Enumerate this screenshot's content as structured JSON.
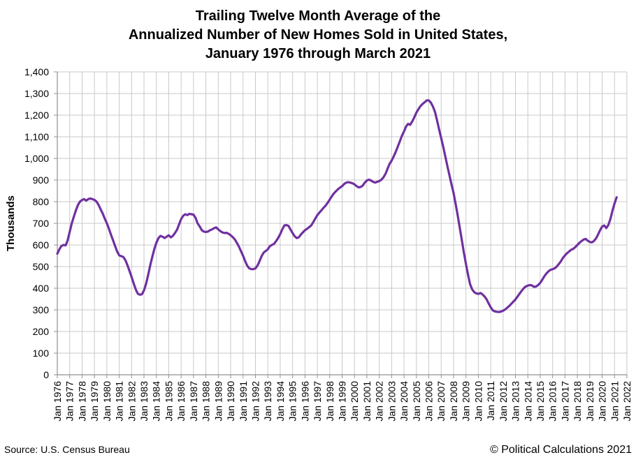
{
  "header": {
    "title_lines": [
      "Trailing Twelve Month Average of the",
      "Annualized Number of New Homes Sold in United States,",
      "January 1976 through March 2021"
    ]
  },
  "footer": {
    "source": "Source: U.S. Census Bureau",
    "copyright": "© Political Calculations 2021"
  },
  "colors": {
    "line": "#7030A0",
    "gridline": "#C9C9C9",
    "axis": "#909090",
    "text": "#000000",
    "background": "#FFFFFF"
  },
  "chart_data": {
    "type": "line",
    "title": "Trailing Twelve Month Average of the Annualized Number of New Homes Sold in United States, January 1976 through March 2021",
    "xlabel": "",
    "ylabel": "Thousands",
    "ylim": [
      0,
      1400
    ],
    "ytick_step": 100,
    "xlim": [
      1976,
      2022
    ],
    "grid": true,
    "legend_position": "none",
    "xtick_labels": [
      "Jan 1976",
      "Jan 1977",
      "Jan 1978",
      "Jan 1979",
      "Jan 1980",
      "Jan 1981",
      "Jan 1982",
      "Jan 1983",
      "Jan 1984",
      "Jan 1985",
      "Jan 1986",
      "Jan 1987",
      "Jan 1988",
      "Jan 1989",
      "Jan 1990",
      "Jan 1991",
      "Jan 1992",
      "Jan 1993",
      "Jan 1994",
      "Jan 1995",
      "Jan 1996",
      "Jan 1997",
      "Jan 1998",
      "Jan 1999",
      "Jan 2000",
      "Jan 2001",
      "Jan 2002",
      "Jan 2003",
      "Jan 2004",
      "Jan 2005",
      "Jan 2006",
      "Jan 2007",
      "Jan 2008",
      "Jan 2009",
      "Jan 2010",
      "Jan 2011",
      "Jan 2012",
      "Jan 2013",
      "Jan 2014",
      "Jan 2015",
      "Jan 2016",
      "Jan 2017",
      "Jan 2018",
      "Jan 2019",
      "Jan 2020",
      "Jan 2021",
      "Jan 2022"
    ],
    "series": [
      {
        "name": "Trailing twelve month average of annualized new homes sold (thousands)",
        "points": [
          [
            1976.0,
            560
          ],
          [
            1976.17,
            580
          ],
          [
            1976.33,
            595
          ],
          [
            1976.5,
            600
          ],
          [
            1976.67,
            598
          ],
          [
            1976.83,
            620
          ],
          [
            1977.0,
            660
          ],
          [
            1977.17,
            700
          ],
          [
            1977.33,
            730
          ],
          [
            1977.5,
            760
          ],
          [
            1977.67,
            785
          ],
          [
            1977.83,
            800
          ],
          [
            1978.0,
            808
          ],
          [
            1978.17,
            812
          ],
          [
            1978.33,
            805
          ],
          [
            1978.5,
            812
          ],
          [
            1978.67,
            815
          ],
          [
            1978.83,
            812
          ],
          [
            1979.0,
            808
          ],
          [
            1979.17,
            800
          ],
          [
            1979.33,
            785
          ],
          [
            1979.5,
            765
          ],
          [
            1979.67,
            745
          ],
          [
            1979.83,
            722
          ],
          [
            1980.0,
            700
          ],
          [
            1980.17,
            675
          ],
          [
            1980.33,
            648
          ],
          [
            1980.5,
            622
          ],
          [
            1980.67,
            595
          ],
          [
            1980.83,
            570
          ],
          [
            1981.0,
            552
          ],
          [
            1981.17,
            548
          ],
          [
            1981.33,
            545
          ],
          [
            1981.5,
            530
          ],
          [
            1981.67,
            505
          ],
          [
            1981.83,
            480
          ],
          [
            1982.0,
            452
          ],
          [
            1982.17,
            422
          ],
          [
            1982.33,
            395
          ],
          [
            1982.5,
            375
          ],
          [
            1982.67,
            370
          ],
          [
            1982.83,
            372
          ],
          [
            1983.0,
            390
          ],
          [
            1983.17,
            420
          ],
          [
            1983.33,
            460
          ],
          [
            1983.5,
            505
          ],
          [
            1983.67,
            545
          ],
          [
            1983.83,
            580
          ],
          [
            1984.0,
            610
          ],
          [
            1984.17,
            632
          ],
          [
            1984.33,
            642
          ],
          [
            1984.5,
            638
          ],
          [
            1984.67,
            632
          ],
          [
            1984.83,
            638
          ],
          [
            1985.0,
            645
          ],
          [
            1985.17,
            635
          ],
          [
            1985.33,
            642
          ],
          [
            1985.5,
            655
          ],
          [
            1985.67,
            670
          ],
          [
            1985.83,
            695
          ],
          [
            1986.0,
            720
          ],
          [
            1986.17,
            735
          ],
          [
            1986.33,
            742
          ],
          [
            1986.5,
            738
          ],
          [
            1986.67,
            744
          ],
          [
            1986.83,
            742
          ],
          [
            1987.0,
            740
          ],
          [
            1987.17,
            725
          ],
          [
            1987.33,
            700
          ],
          [
            1987.5,
            685
          ],
          [
            1987.67,
            668
          ],
          [
            1987.83,
            662
          ],
          [
            1988.0,
            660
          ],
          [
            1988.17,
            662
          ],
          [
            1988.33,
            668
          ],
          [
            1988.5,
            672
          ],
          [
            1988.67,
            678
          ],
          [
            1988.83,
            681
          ],
          [
            1989.0,
            672
          ],
          [
            1989.17,
            664
          ],
          [
            1989.33,
            658
          ],
          [
            1989.5,
            655
          ],
          [
            1989.67,
            656
          ],
          [
            1989.83,
            652
          ],
          [
            1990.0,
            645
          ],
          [
            1990.17,
            636
          ],
          [
            1990.33,
            626
          ],
          [
            1990.5,
            610
          ],
          [
            1990.67,
            592
          ],
          [
            1990.83,
            572
          ],
          [
            1991.0,
            550
          ],
          [
            1991.17,
            525
          ],
          [
            1991.33,
            505
          ],
          [
            1991.5,
            492
          ],
          [
            1991.67,
            488
          ],
          [
            1991.83,
            488
          ],
          [
            1992.0,
            492
          ],
          [
            1992.17,
            505
          ],
          [
            1992.33,
            525
          ],
          [
            1992.5,
            548
          ],
          [
            1992.67,
            565
          ],
          [
            1992.83,
            572
          ],
          [
            1993.0,
            580
          ],
          [
            1993.17,
            595
          ],
          [
            1993.33,
            600
          ],
          [
            1993.5,
            605
          ],
          [
            1993.67,
            618
          ],
          [
            1993.83,
            632
          ],
          [
            1994.0,
            650
          ],
          [
            1994.17,
            672
          ],
          [
            1994.33,
            690
          ],
          [
            1994.5,
            692
          ],
          [
            1994.67,
            688
          ],
          [
            1994.83,
            672
          ],
          [
            1995.0,
            655
          ],
          [
            1995.17,
            640
          ],
          [
            1995.33,
            632
          ],
          [
            1995.5,
            635
          ],
          [
            1995.67,
            648
          ],
          [
            1995.83,
            658
          ],
          [
            1996.0,
            668
          ],
          [
            1996.17,
            675
          ],
          [
            1996.33,
            682
          ],
          [
            1996.5,
            690
          ],
          [
            1996.67,
            705
          ],
          [
            1996.83,
            722
          ],
          [
            1997.0,
            738
          ],
          [
            1997.17,
            750
          ],
          [
            1997.33,
            760
          ],
          [
            1997.5,
            772
          ],
          [
            1997.67,
            782
          ],
          [
            1997.83,
            795
          ],
          [
            1998.0,
            810
          ],
          [
            1998.17,
            825
          ],
          [
            1998.33,
            838
          ],
          [
            1998.5,
            848
          ],
          [
            1998.67,
            858
          ],
          [
            1998.83,
            865
          ],
          [
            1999.0,
            872
          ],
          [
            1999.17,
            882
          ],
          [
            1999.33,
            888
          ],
          [
            1999.5,
            890
          ],
          [
            1999.67,
            888
          ],
          [
            1999.83,
            885
          ],
          [
            2000.0,
            880
          ],
          [
            2000.17,
            872
          ],
          [
            2000.33,
            866
          ],
          [
            2000.5,
            868
          ],
          [
            2000.67,
            875
          ],
          [
            2000.83,
            888
          ],
          [
            2001.0,
            898
          ],
          [
            2001.17,
            902
          ],
          [
            2001.33,
            898
          ],
          [
            2001.5,
            892
          ],
          [
            2001.67,
            888
          ],
          [
            2001.83,
            892
          ],
          [
            2002.0,
            895
          ],
          [
            2002.17,
            902
          ],
          [
            2002.33,
            912
          ],
          [
            2002.5,
            928
          ],
          [
            2002.67,
            952
          ],
          [
            2002.83,
            975
          ],
          [
            2003.0,
            990
          ],
          [
            2003.17,
            1010
          ],
          [
            2003.33,
            1030
          ],
          [
            2003.5,
            1055
          ],
          [
            2003.67,
            1080
          ],
          [
            2003.83,
            1105
          ],
          [
            2004.0,
            1125
          ],
          [
            2004.17,
            1148
          ],
          [
            2004.33,
            1160
          ],
          [
            2004.5,
            1155
          ],
          [
            2004.67,
            1172
          ],
          [
            2004.83,
            1190
          ],
          [
            2005.0,
            1212
          ],
          [
            2005.17,
            1228
          ],
          [
            2005.33,
            1242
          ],
          [
            2005.5,
            1252
          ],
          [
            2005.67,
            1260
          ],
          [
            2005.83,
            1268
          ],
          [
            2006.0,
            1268
          ],
          [
            2006.17,
            1258
          ],
          [
            2006.33,
            1240
          ],
          [
            2006.5,
            1215
          ],
          [
            2006.67,
            1175
          ],
          [
            2006.83,
            1135
          ],
          [
            2007.0,
            1095
          ],
          [
            2007.17,
            1052
          ],
          [
            2007.33,
            1010
          ],
          [
            2007.5,
            965
          ],
          [
            2007.67,
            922
          ],
          [
            2007.83,
            882
          ],
          [
            2008.0,
            840
          ],
          [
            2008.17,
            788
          ],
          [
            2008.33,
            738
          ],
          [
            2008.5,
            680
          ],
          [
            2008.67,
            622
          ],
          [
            2008.83,
            565
          ],
          [
            2009.0,
            512
          ],
          [
            2009.17,
            462
          ],
          [
            2009.33,
            420
          ],
          [
            2009.5,
            395
          ],
          [
            2009.67,
            382
          ],
          [
            2009.83,
            376
          ],
          [
            2010.0,
            374
          ],
          [
            2010.17,
            378
          ],
          [
            2010.33,
            372
          ],
          [
            2010.5,
            362
          ],
          [
            2010.67,
            348
          ],
          [
            2010.83,
            330
          ],
          [
            2011.0,
            312
          ],
          [
            2011.17,
            298
          ],
          [
            2011.33,
            293
          ],
          [
            2011.5,
            291
          ],
          [
            2011.67,
            290
          ],
          [
            2011.83,
            292
          ],
          [
            2012.0,
            296
          ],
          [
            2012.17,
            302
          ],
          [
            2012.33,
            310
          ],
          [
            2012.5,
            318
          ],
          [
            2012.67,
            328
          ],
          [
            2012.83,
            338
          ],
          [
            2013.0,
            348
          ],
          [
            2013.17,
            362
          ],
          [
            2013.33,
            375
          ],
          [
            2013.5,
            388
          ],
          [
            2013.67,
            400
          ],
          [
            2013.83,
            408
          ],
          [
            2014.0,
            412
          ],
          [
            2014.17,
            415
          ],
          [
            2014.33,
            413
          ],
          [
            2014.5,
            406
          ],
          [
            2014.67,
            408
          ],
          [
            2014.83,
            415
          ],
          [
            2015.0,
            425
          ],
          [
            2015.17,
            440
          ],
          [
            2015.33,
            455
          ],
          [
            2015.5,
            468
          ],
          [
            2015.67,
            478
          ],
          [
            2015.83,
            485
          ],
          [
            2016.0,
            488
          ],
          [
            2016.17,
            492
          ],
          [
            2016.33,
            500
          ],
          [
            2016.5,
            512
          ],
          [
            2016.67,
            525
          ],
          [
            2016.83,
            540
          ],
          [
            2017.0,
            552
          ],
          [
            2017.17,
            562
          ],
          [
            2017.33,
            570
          ],
          [
            2017.5,
            578
          ],
          [
            2017.67,
            582
          ],
          [
            2017.83,
            590
          ],
          [
            2018.0,
            600
          ],
          [
            2018.17,
            610
          ],
          [
            2018.33,
            618
          ],
          [
            2018.5,
            625
          ],
          [
            2018.67,
            628
          ],
          [
            2018.83,
            620
          ],
          [
            2019.0,
            614
          ],
          [
            2019.17,
            612
          ],
          [
            2019.33,
            618
          ],
          [
            2019.5,
            630
          ],
          [
            2019.67,
            648
          ],
          [
            2019.83,
            668
          ],
          [
            2020.0,
            685
          ],
          [
            2020.17,
            690
          ],
          [
            2020.33,
            678
          ],
          [
            2020.5,
            692
          ],
          [
            2020.67,
            720
          ],
          [
            2020.83,
            758
          ],
          [
            2021.0,
            792
          ],
          [
            2021.17,
            820
          ]
        ]
      }
    ]
  }
}
